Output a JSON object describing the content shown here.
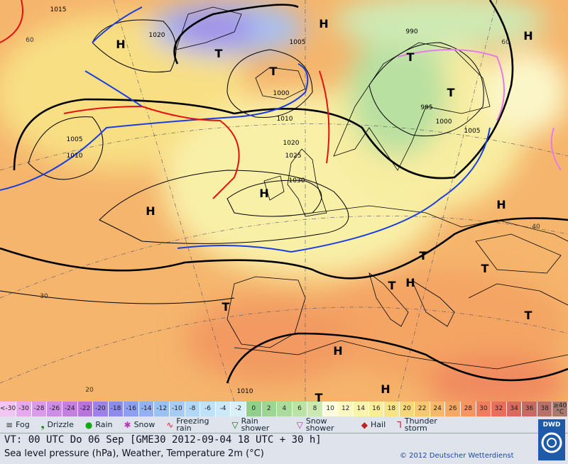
{
  "map": {
    "systems": [
      "H",
      "H",
      "H",
      "T",
      "T",
      "T",
      "H",
      "H",
      "H",
      "T",
      "T",
      "H",
      "T",
      "T",
      "T",
      "H",
      "H",
      "T",
      "T"
    ],
    "isobar_labels": [
      "1015",
      "1020",
      "1005",
      "990",
      "1000",
      "1010",
      "995",
      "1000",
      "1005",
      "1020",
      "1025",
      "1030",
      "1005",
      "1010",
      "1010"
    ],
    "grid_labels": [
      "60",
      "60",
      "40",
      "30",
      "20"
    ]
  },
  "scale": [
    {
      "label": "<-30",
      "color": "#f2c6f2"
    },
    {
      "label": "-30",
      "color": "#e7a8ef"
    },
    {
      "label": "-28",
      "color": "#dc9bea"
    },
    {
      "label": "-26",
      "color": "#d08de6"
    },
    {
      "label": "-24",
      "color": "#c47fe0"
    },
    {
      "label": "-22",
      "color": "#b874db"
    },
    {
      "label": "-20",
      "color": "#9c82e8"
    },
    {
      "label": "-18",
      "color": "#8d8cec"
    },
    {
      "label": "-16",
      "color": "#8f9ff0"
    },
    {
      "label": "-14",
      "color": "#94b0f2"
    },
    {
      "label": "-12",
      "color": "#9ac0f4"
    },
    {
      "label": "-10",
      "color": "#a6ccf6"
    },
    {
      "label": "-8",
      "color": "#b2d8f7"
    },
    {
      "label": "-6",
      "color": "#bee2f8"
    },
    {
      "label": "-4",
      "color": "#cbe9f9"
    },
    {
      "label": "-2",
      "color": "#d8f0fa"
    },
    {
      "label": "0",
      "color": "#8fd08a"
    },
    {
      "label": "2",
      "color": "#9dd693"
    },
    {
      "label": "4",
      "color": "#abdc9c"
    },
    {
      "label": "6",
      "color": "#bbe3a6"
    },
    {
      "label": "8",
      "color": "#cbe9b1"
    },
    {
      "label": "10",
      "color": "#fdfde0"
    },
    {
      "label": "12",
      "color": "#fbf8c4"
    },
    {
      "label": "14",
      "color": "#f9f3ae"
    },
    {
      "label": "16",
      "color": "#f8ee9a"
    },
    {
      "label": "18",
      "color": "#f8e484"
    },
    {
      "label": "20",
      "color": "#f8d77a"
    },
    {
      "label": "22",
      "color": "#f7c872"
    },
    {
      "label": "24",
      "color": "#f6b96c"
    },
    {
      "label": "26",
      "color": "#f5a866"
    },
    {
      "label": "28",
      "color": "#f49562"
    },
    {
      "label": "30",
      "color": "#f07d5e"
    },
    {
      "label": "32",
      "color": "#e86f5c"
    },
    {
      "label": "34",
      "color": "#d96a5e"
    },
    {
      "label": "36",
      "color": "#c86a62"
    },
    {
      "label": "38",
      "color": "#b87068"
    },
    {
      "label": "≥40 °C",
      "color": "#a97a70"
    }
  ],
  "weather_legend": [
    "Fog",
    "Drizzle",
    "Rain",
    "Snow",
    "Freezing rain",
    "Rain shower",
    "Snow shower",
    "Hail",
    "Thunder storm"
  ],
  "footer": {
    "valid_time": "VT: 00 UTC Do  06 Sep [GME30 2012-09-04  18 UTC + 30 h]",
    "description": "Sea level pressure (hPa), Weather, Temperature 2m (°C)",
    "copyright": "© 2012 Deutscher Wetterdienst",
    "logo": "DWD"
  }
}
